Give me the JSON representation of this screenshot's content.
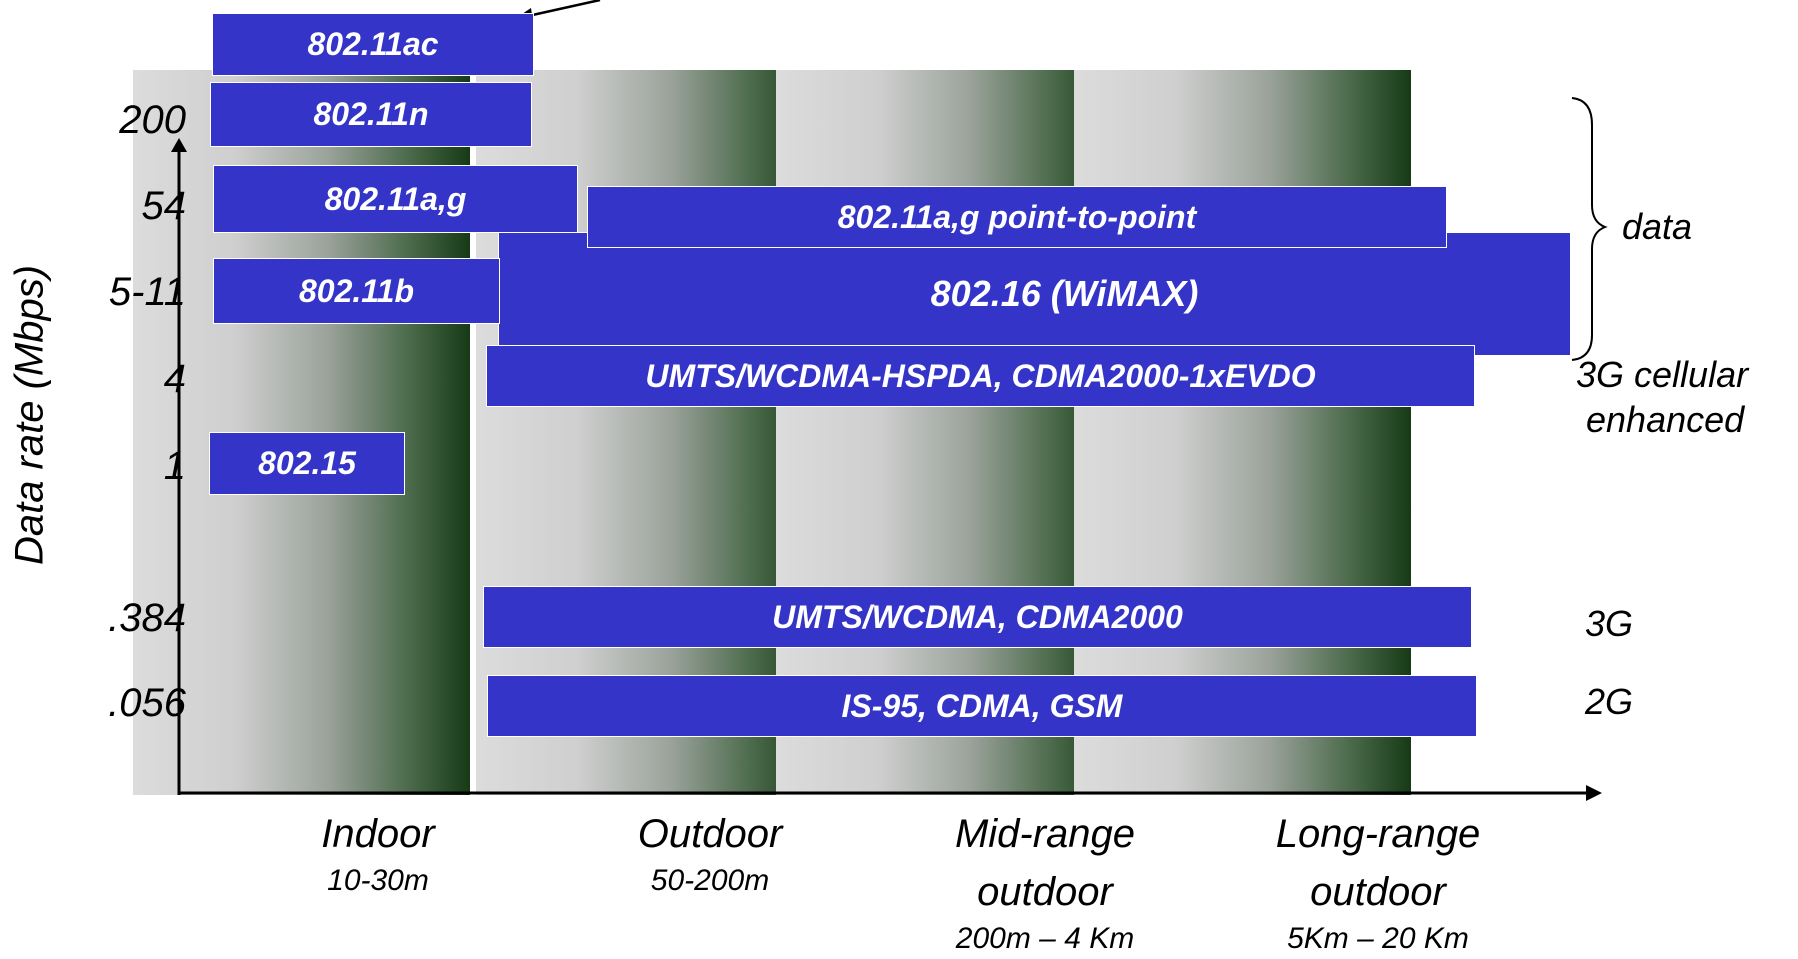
{
  "y_axis": {
    "label": "Data rate (Mbps)",
    "ticks": [
      "200",
      "54",
      "5-11",
      "4",
      "1",
      ".384",
      ".056"
    ]
  },
  "x_axis": {
    "categories": [
      {
        "name": "Indoor",
        "range": "10-30m"
      },
      {
        "name": "Outdoor",
        "range": "50-200m"
      },
      {
        "name": "Mid-range outdoor",
        "name_lines": [
          "Mid-range",
          "outdoor"
        ],
        "range": "200m – 4 Km"
      },
      {
        "name": "Long-range outdoor",
        "name_lines": [
          "Long-range",
          "outdoor"
        ],
        "range": "5Km – 20 Km"
      }
    ]
  },
  "technologies": {
    "wifi_ac": "802.11ac",
    "wifi_n": "802.11n",
    "wifi_ag": "802.11a,g",
    "wifi_ag_p2p": "802.11a,g point-to-point",
    "wifi_b": "802.11b",
    "wimax": "802.16 (WiMAX)",
    "umts_hspda": "UMTS/WCDMA-HSPDA, CDMA2000-1xEVDO",
    "bluetooth": "802.15",
    "umts": "UMTS/WCDMA, CDMA2000",
    "gsm": "IS-95, CDMA, GSM"
  },
  "right_labels": {
    "data": "data",
    "enhanced_line1": "3G cellular",
    "enhanced_line2": "enhanced",
    "g3": "3G",
    "g2": "2G"
  },
  "colors": {
    "bar_fill": "#3434c8",
    "bar_text": "#ffffff",
    "band_light": "#dcdcdc",
    "band_dark": "#163a16",
    "axis": "#000000"
  }
}
